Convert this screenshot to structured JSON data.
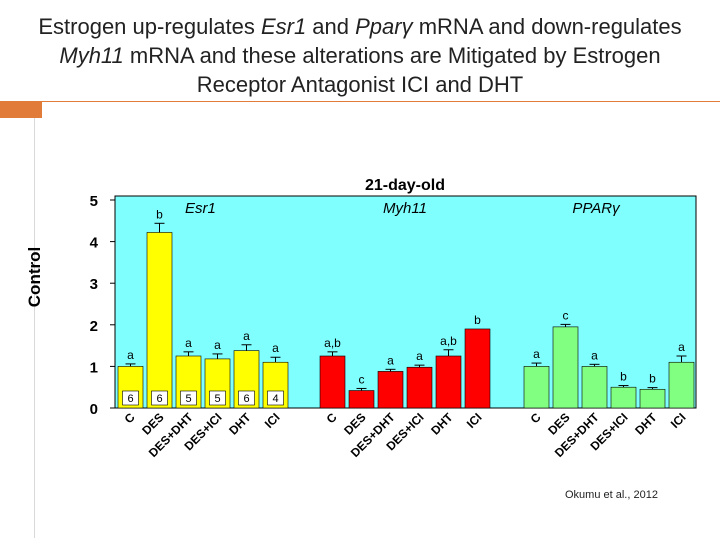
{
  "slide": {
    "title_lines": [
      [
        {
          "t": "Estrogen up-regulates ",
          "i": false
        },
        {
          "t": "Esr1",
          "i": true
        },
        {
          "t": " and ",
          "i": false
        },
        {
          "t": "Pparγ",
          "i": true
        },
        {
          "t": " mRNA and down-regulates",
          "i": false
        }
      ],
      [
        {
          "t": "Myh11",
          "i": true
        },
        {
          "t": " mRNA and these alterations are Mitigated by Estrogen",
          "i": false
        }
      ],
      [
        {
          "t": "Receptor Antagonist ICI and DHT",
          "i": false
        }
      ]
    ],
    "credit": "Okumu et al., 2012",
    "accent_color": "#e07b39"
  },
  "chart_data": {
    "type": "bar",
    "title": "21-day-old",
    "ylabel": "Control",
    "ylim": [
      0,
      5
    ],
    "yticks": [
      0,
      1,
      2,
      3,
      4,
      5
    ],
    "plot_background": "#80ffff",
    "categories": [
      "C",
      "DES",
      "DES+DHT",
      "DES+ICI",
      "DHT",
      "ICI"
    ],
    "series": [
      {
        "name": "Esr1",
        "color": "#ffff00",
        "values": [
          1.0,
          4.22,
          1.25,
          1.18,
          1.38,
          1.1
        ],
        "errors": [
          0.06,
          0.22,
          0.1,
          0.12,
          0.14,
          0.12
        ],
        "labels": [
          "a",
          "b",
          "a",
          "a",
          "a",
          "a"
        ],
        "n": [
          "6",
          "6",
          "5",
          "5",
          "6",
          "4"
        ]
      },
      {
        "name": "Myh11",
        "color": "#ff0000",
        "values": [
          1.25,
          0.42,
          0.88,
          0.98,
          1.25,
          1.9
        ],
        "errors": [
          0.1,
          0.05,
          0.05,
          0.05,
          0.15,
          0.0
        ],
        "labels": [
          "a,b",
          "c",
          "a",
          "a",
          "a,b",
          "b"
        ]
      },
      {
        "name": "PPARγ",
        "color": "#80ff80",
        "values": [
          1.0,
          1.95,
          1.0,
          0.5,
          0.45,
          1.1
        ],
        "errors": [
          0.08,
          0.06,
          0.05,
          0.04,
          0.04,
          0.15
        ],
        "labels": [
          "a",
          "c",
          "a",
          "b",
          "b",
          "a"
        ]
      }
    ]
  }
}
